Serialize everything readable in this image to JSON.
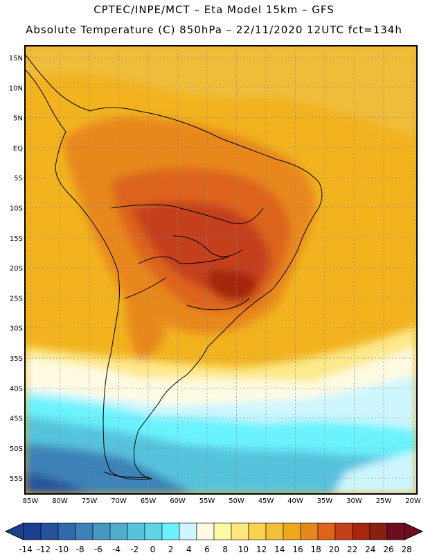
{
  "header": {
    "line1": "CPTEC/INPE/MCT –  Eta Model 15km – GFS",
    "line2": "Absolute Temperature (C) 850hPa – 22/11/2020 12UTC fct=134h"
  },
  "axes": {
    "lat_labels": [
      "15N",
      "10N",
      "5N",
      "EQ",
      "5S",
      "10S",
      "15S",
      "20S",
      "25S",
      "30S",
      "35S",
      "40S",
      "45S",
      "50S",
      "55S"
    ],
    "lon_labels": [
      "85W",
      "80W",
      "75W",
      "70W",
      "65W",
      "60W",
      "55W",
      "50W",
      "45W",
      "40W",
      "35W",
      "30W",
      "25W",
      "20W"
    ]
  },
  "colorbar": {
    "labels": [
      "-14",
      "-12",
      "-10",
      "-8",
      "-6",
      "-4",
      "-2",
      "0",
      "2",
      "4",
      "6",
      "8",
      "10",
      "12",
      "14",
      "16",
      "18",
      "20",
      "22",
      "24",
      "26",
      "28"
    ],
    "colors": [
      "#1c3f8f",
      "#26529c",
      "#2f6aab",
      "#3c82b8",
      "#4698c2",
      "#4fadd0",
      "#56c3dd",
      "#5ed6e8",
      "#6af3ff",
      "#cdf6ff",
      "#fffbe2",
      "#fff9a6",
      "#fde67a",
      "#f9d24f",
      "#f2c13a",
      "#f0a81a",
      "#e8881c",
      "#de631a",
      "#c4401a",
      "#a6260e",
      "#852012",
      "#6e0d22"
    ]
  }
}
